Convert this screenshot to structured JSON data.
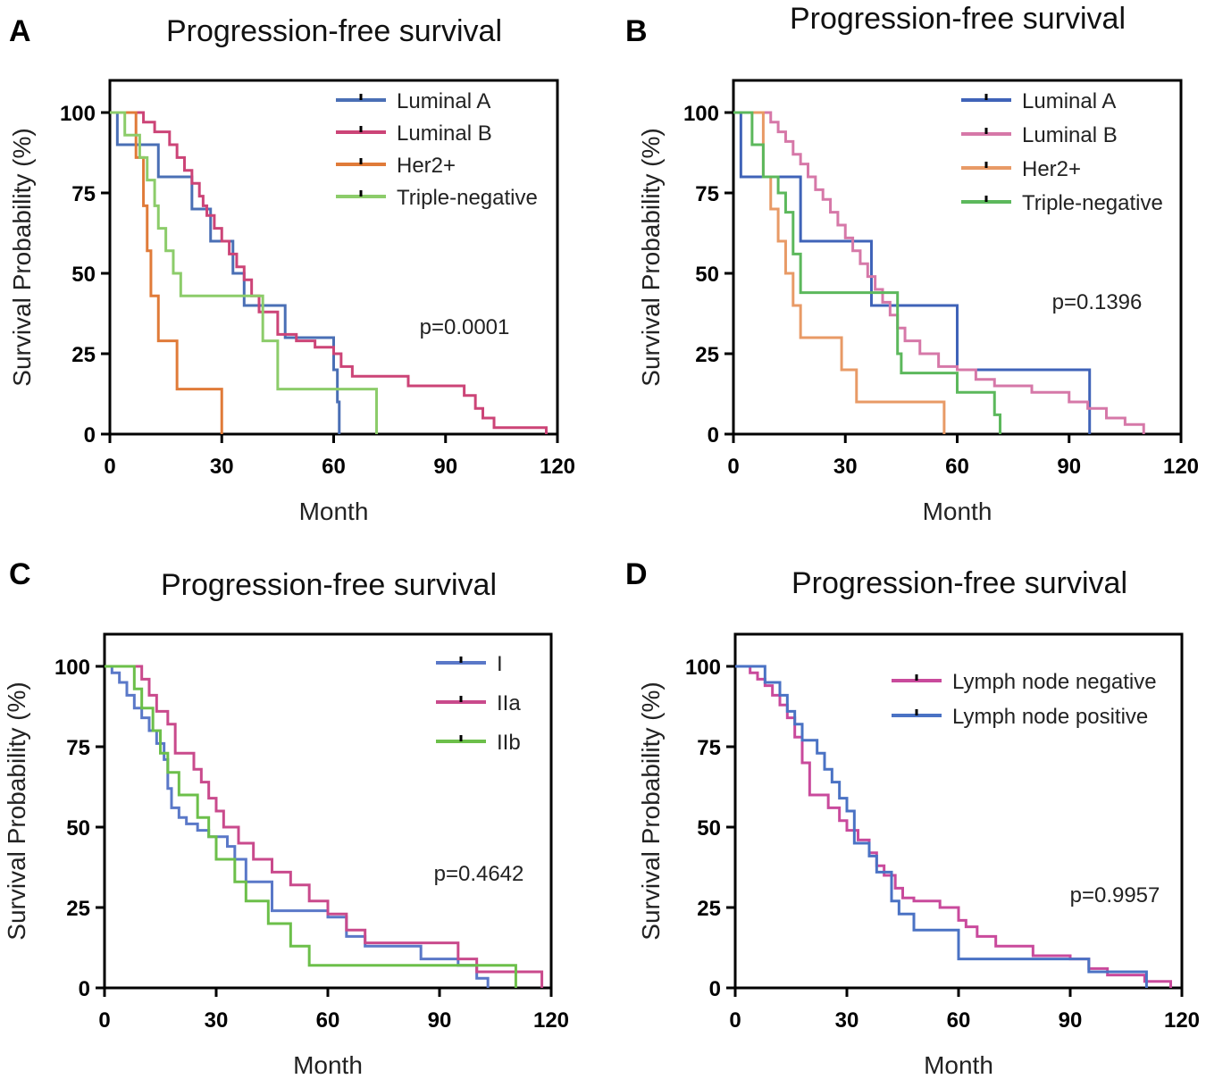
{
  "chart_data": [
    {
      "panel": "A",
      "type": "line",
      "title": "Progression-free survival",
      "xlabel": "Month",
      "ylabel": "Survival Probability (%)",
      "xlim": [
        0,
        120
      ],
      "ylim": [
        0,
        110
      ],
      "xticks": [
        0,
        30,
        60,
        90,
        120
      ],
      "yticks": [
        0,
        25,
        50,
        75,
        100
      ],
      "legend_position": "top-right",
      "annotation": "p=0.0001",
      "series": [
        {
          "name": "Luminal A",
          "color": "#4a6fb5",
          "x": [
            0,
            2,
            7,
            13,
            22,
            27,
            30,
            33,
            36,
            47,
            60,
            61,
            61.5
          ],
          "y": [
            100,
            90,
            90,
            80,
            70,
            60,
            60,
            50,
            40,
            30,
            20,
            10,
            0
          ]
        },
        {
          "name": "Luminal B",
          "color": "#cc4477",
          "x": [
            0,
            9,
            12,
            16,
            18,
            20,
            22,
            24,
            25,
            26,
            28,
            30,
            32,
            34,
            36,
            38,
            40,
            45,
            50,
            55,
            60,
            62,
            65,
            70,
            80,
            95,
            98,
            100,
            103,
            110,
            117
          ],
          "y": [
            100,
            97,
            94,
            90,
            86,
            82,
            78,
            74,
            71,
            68,
            64,
            60,
            56,
            52,
            48,
            43,
            38,
            31,
            29,
            27,
            25,
            21,
            18,
            18,
            15,
            12,
            8,
            5,
            2,
            2,
            0
          ]
        },
        {
          "name": "Her2+",
          "color": "#e07b39",
          "x": [
            0,
            7,
            9,
            10,
            11,
            13,
            18,
            30
          ],
          "y": [
            100,
            86,
            71,
            57,
            43,
            29,
            14,
            0
          ]
        },
        {
          "name": "Triple-negative",
          "color": "#8ccc6a",
          "x": [
            0,
            4,
            8,
            10,
            12,
            13,
            15,
            17,
            19,
            36,
            41,
            45,
            62,
            71,
            71.5
          ],
          "y": [
            100,
            93,
            86,
            79,
            71,
            64,
            57,
            50,
            43,
            43,
            29,
            14,
            14,
            14,
            0
          ]
        }
      ]
    },
    {
      "panel": "B",
      "type": "line",
      "title": "Progression-free survival",
      "xlabel": "Month",
      "ylabel": "Survival Probability (%)",
      "xlim": [
        0,
        120
      ],
      "ylim": [
        0,
        110
      ],
      "xticks": [
        0,
        30,
        60,
        90,
        120
      ],
      "yticks": [
        0,
        25,
        50,
        75,
        100
      ],
      "legend_position": "top-right",
      "annotation": "p=0.1396",
      "series": [
        {
          "name": "Luminal A",
          "color": "#3f63b8",
          "x": [
            0,
            2,
            18,
            37,
            60,
            95,
            95.5
          ],
          "y": [
            100,
            80,
            60,
            40,
            20,
            20,
            0
          ]
        },
        {
          "name": "Luminal B",
          "color": "#d678a8",
          "x": [
            0,
            10,
            12,
            14,
            16,
            18,
            20,
            22,
            24,
            26,
            28,
            30,
            32,
            34,
            36,
            38,
            40,
            42,
            44,
            46,
            50,
            55,
            60,
            65,
            70,
            80,
            90,
            95,
            100,
            105,
            110
          ],
          "y": [
            100,
            97,
            94,
            91,
            87,
            84,
            80,
            76,
            73,
            69,
            65,
            61,
            57,
            53,
            49,
            45,
            41,
            37,
            33,
            29,
            25,
            21,
            20,
            17,
            15,
            13,
            10,
            8,
            5,
            3,
            0
          ]
        },
        {
          "name": "Her2+",
          "color": "#e89a66",
          "x": [
            0,
            8,
            10,
            12,
            14,
            16,
            18,
            29,
            33,
            56,
            56.5
          ],
          "y": [
            100,
            80,
            70,
            60,
            50,
            40,
            30,
            20,
            10,
            10,
            0
          ]
        },
        {
          "name": "Triple-negative",
          "color": "#5cb85c",
          "x": [
            0,
            5,
            8,
            12,
            14,
            16,
            18,
            36,
            44,
            45,
            60,
            70,
            71,
            71.5
          ],
          "y": [
            100,
            90,
            80,
            75,
            69,
            56,
            44,
            44,
            25,
            19,
            13,
            6,
            6,
            0
          ]
        }
      ]
    },
    {
      "panel": "C",
      "type": "line",
      "title": "Progression-free survival",
      "xlabel": "Month",
      "ylabel": "Survival Probability (%)",
      "xlim": [
        0,
        120
      ],
      "ylim": [
        0,
        110
      ],
      "xticks": [
        0,
        30,
        60,
        90,
        120
      ],
      "yticks": [
        0,
        25,
        50,
        75,
        100
      ],
      "legend_position": "top-right",
      "annotation": "p=0.4642",
      "series": [
        {
          "name": "I",
          "color": "#5a78c8",
          "x": [
            0,
            2,
            4,
            6,
            8,
            10,
            12,
            14,
            16,
            17,
            18,
            20,
            22,
            25,
            28,
            33,
            35,
            38,
            45,
            60,
            65,
            70,
            85,
            95,
            100,
            103
          ],
          "y": [
            100,
            98,
            95,
            91,
            87,
            84,
            80,
            76,
            71,
            62,
            56,
            53,
            51,
            49,
            47,
            44,
            40,
            33,
            24,
            22,
            16,
            13,
            9,
            7,
            3,
            0
          ]
        },
        {
          "name": "IIa",
          "color": "#c94a8c",
          "x": [
            0,
            10,
            12,
            14,
            17,
            19,
            24,
            26,
            28,
            30,
            32,
            36,
            40,
            45,
            50,
            55,
            60,
            65,
            70,
            95,
            100,
            115,
            117.5
          ],
          "y": [
            100,
            96,
            91,
            86,
            82,
            73,
            68,
            64,
            59,
            55,
            50,
            45,
            40,
            36,
            32,
            27,
            23,
            18,
            14,
            9,
            5,
            5,
            0
          ]
        },
        {
          "name": "IIb",
          "color": "#6cbf4a",
          "x": [
            0,
            8,
            10,
            13,
            15,
            17,
            20,
            25,
            28,
            30,
            35,
            38,
            44,
            50,
            55,
            95,
            110,
            110.5
          ],
          "y": [
            100,
            93,
            87,
            80,
            73,
            67,
            60,
            53,
            47,
            40,
            33,
            27,
            20,
            13,
            7,
            7,
            7,
            0
          ]
        }
      ]
    },
    {
      "panel": "D",
      "type": "line",
      "title": "Progression-free survival",
      "xlabel": "Month",
      "ylabel": "Survival Probability (%)",
      "xlim": [
        0,
        120
      ],
      "ylim": [
        0,
        110
      ],
      "xticks": [
        0,
        30,
        60,
        90,
        120
      ],
      "yticks": [
        0,
        25,
        50,
        75,
        100
      ],
      "legend_position": "top-right",
      "annotation": "p=0.9957",
      "series": [
        {
          "name": "Lymph node negative",
          "color": "#c94a9c",
          "x": [
            0,
            4,
            6,
            8,
            10,
            12,
            14,
            16,
            18,
            20,
            25,
            28,
            30,
            33,
            36,
            38,
            40,
            43,
            45,
            48,
            55,
            60,
            62,
            65,
            70,
            80,
            90,
            95,
            100,
            110,
            117
          ],
          "y": [
            100,
            98,
            96,
            94,
            91,
            88,
            84,
            78,
            70,
            60,
            56,
            52,
            49,
            46,
            42,
            38,
            35,
            31,
            28,
            27,
            25,
            21,
            19,
            16,
            13,
            10,
            9,
            6,
            4,
            2,
            0
          ]
        },
        {
          "name": "Lymph node positive",
          "color": "#4a72c4",
          "x": [
            0,
            8,
            12,
            14,
            16,
            18,
            22,
            24,
            26,
            28,
            30,
            32,
            36,
            38,
            42,
            44,
            48,
            60,
            90,
            95,
            110,
            110.5
          ],
          "y": [
            100,
            95,
            91,
            86,
            82,
            77,
            73,
            68,
            64,
            59,
            55,
            45,
            41,
            36,
            27,
            23,
            18,
            9,
            9,
            5,
            5,
            0
          ]
        }
      ]
    }
  ]
}
